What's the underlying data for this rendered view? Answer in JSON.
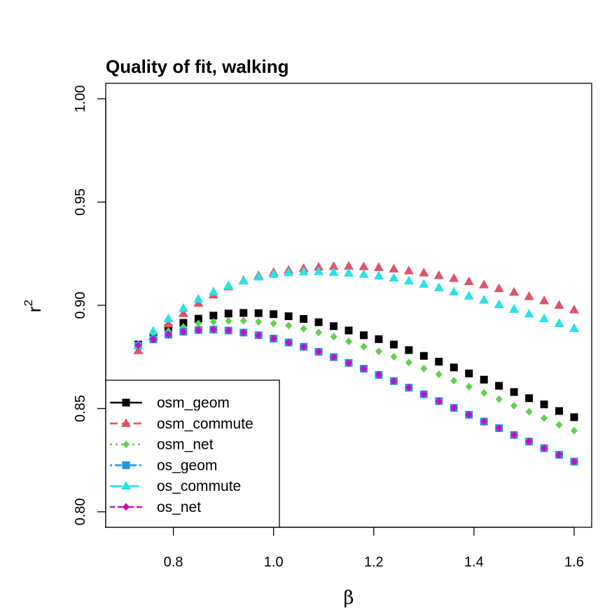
{
  "chart_data": {
    "type": "scatter",
    "title": "Quality of fit, walking",
    "xlabel": "β",
    "ylabel": "r",
    "ylabel_superscript": "2",
    "xlim": [
      0.665,
      1.635
    ],
    "ylim": [
      0.7925,
      1.0075
    ],
    "xticks": [
      0.8,
      1.0,
      1.2,
      1.4,
      1.6
    ],
    "xtick_labels": [
      "0.8",
      "1.0",
      "1.2",
      "1.4",
      "1.6"
    ],
    "yticks": [
      0.8,
      0.85,
      0.9,
      0.95,
      1.0
    ],
    "ytick_labels": [
      "0.80",
      "0.85",
      "0.90",
      "0.95",
      "1.00"
    ],
    "grid": false,
    "legend_position": "bottom-left",
    "x": [
      0.73,
      0.76,
      0.79,
      0.82,
      0.85,
      0.88,
      0.91,
      0.94,
      0.97,
      1.0,
      1.03,
      1.06,
      1.09,
      1.12,
      1.15,
      1.18,
      1.21,
      1.24,
      1.27,
      1.3,
      1.33,
      1.36,
      1.39,
      1.42,
      1.45,
      1.48,
      1.51,
      1.54,
      1.57,
      1.6
    ],
    "series": [
      {
        "name": "osm_geom",
        "color": "#000000",
        "marker": "square",
        "line": "solid",
        "values": [
          0.881,
          0.885,
          0.889,
          0.8915,
          0.8935,
          0.895,
          0.896,
          0.8963,
          0.8962,
          0.8957,
          0.8947,
          0.8934,
          0.8918,
          0.8899,
          0.8878,
          0.8855,
          0.8836,
          0.881,
          0.8783,
          0.8755,
          0.8727,
          0.8699,
          0.867,
          0.864,
          0.861,
          0.858,
          0.855,
          0.852,
          0.8488,
          0.8458
        ]
      },
      {
        "name": "osm_commute",
        "color": "#DF536B",
        "marker": "triangle",
        "line": "dashed",
        "values": [
          0.878,
          0.885,
          0.891,
          0.896,
          0.901,
          0.905,
          0.909,
          0.912,
          0.9143,
          0.9159,
          0.917,
          0.9178,
          0.9185,
          0.9188,
          0.9189,
          0.9187,
          0.9183,
          0.9176,
          0.9167,
          0.9157,
          0.9144,
          0.913,
          0.9115,
          0.9099,
          0.9081,
          0.9063,
          0.9043,
          0.9022,
          0.9,
          0.8978
        ]
      },
      {
        "name": "osm_net",
        "color": "#61D04F",
        "marker": "diamond",
        "line": "dotted",
        "values": [
          0.8805,
          0.8845,
          0.8875,
          0.8895,
          0.8912,
          0.892,
          0.8924,
          0.8925,
          0.892,
          0.8912,
          0.8902,
          0.8887,
          0.8868,
          0.8848,
          0.8825,
          0.88,
          0.8777,
          0.8751,
          0.8723,
          0.8694,
          0.8666,
          0.8635,
          0.8606,
          0.8576,
          0.8545,
          0.8514,
          0.8484,
          0.8453,
          0.8421,
          0.8393
        ]
      },
      {
        "name": "os_geom",
        "color": "#2297E6",
        "marker": "square",
        "line": "dotdash",
        "values": [
          0.8805,
          0.8835,
          0.8858,
          0.8872,
          0.888,
          0.8882,
          0.8878,
          0.8868,
          0.8855,
          0.8839,
          0.882,
          0.8799,
          0.8775,
          0.8749,
          0.8721,
          0.8693,
          0.8663,
          0.8633,
          0.8601,
          0.8569,
          0.8536,
          0.8503,
          0.847,
          0.8437,
          0.8405,
          0.8372,
          0.834,
          0.8308,
          0.8276,
          0.8243
        ]
      },
      {
        "name": "os_commute",
        "color": "#28E2E5",
        "marker": "triangle",
        "line": "longdash",
        "values": [
          0.8805,
          0.8875,
          0.8935,
          0.8985,
          0.903,
          0.9065,
          0.9095,
          0.9118,
          0.9137,
          0.915,
          0.9158,
          0.9162,
          0.9163,
          0.916,
          0.9156,
          0.915,
          0.9142,
          0.9132,
          0.9118,
          0.9102,
          0.9085,
          0.9065,
          0.9045,
          0.9025,
          0.9003,
          0.8981,
          0.8958,
          0.8935,
          0.8912,
          0.8888
        ]
      },
      {
        "name": "os_net",
        "color": "#CD0BBC",
        "marker": "diamond",
        "line": "twodash",
        "values": [
          0.8805,
          0.8835,
          0.8858,
          0.8872,
          0.888,
          0.8882,
          0.8878,
          0.8868,
          0.8855,
          0.8839,
          0.882,
          0.8799,
          0.8775,
          0.8749,
          0.8721,
          0.8693,
          0.8663,
          0.8633,
          0.8601,
          0.8569,
          0.8536,
          0.8503,
          0.847,
          0.8437,
          0.8405,
          0.8372,
          0.834,
          0.8308,
          0.8276,
          0.8243
        ]
      }
    ]
  }
}
